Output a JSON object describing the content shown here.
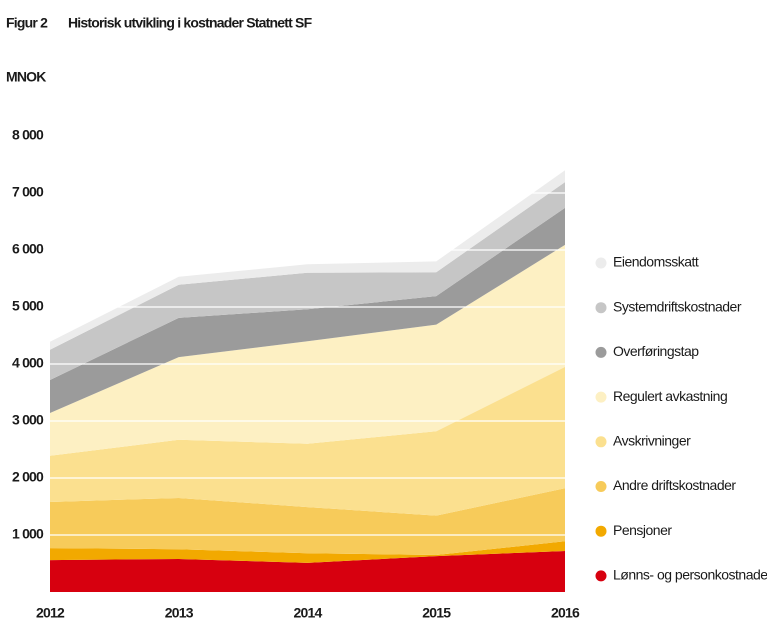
{
  "chart_data": {
    "type": "stacked_area",
    "figure_label": "Figur 2",
    "title": "Historisk utvikling i kostnader Statnett SF",
    "y_label": "MNOK",
    "categories": [
      "2012",
      "2013",
      "2014",
      "2015",
      "2016"
    ],
    "ylim": [
      0,
      8000
    ],
    "yticks": [
      {
        "value": 1000,
        "label": "1 000"
      },
      {
        "value": 2000,
        "label": "2 000"
      },
      {
        "value": 3000,
        "label": "3 000"
      },
      {
        "value": 4000,
        "label": "4 000"
      },
      {
        "value": 5000,
        "label": "5 000"
      },
      {
        "value": 6000,
        "label": "6 000"
      },
      {
        "value": 7000,
        "label": "7 000"
      },
      {
        "value": 8000,
        "label": "8 000"
      }
    ],
    "grid": true,
    "legend": "right",
    "series": [
      {
        "name": "Lønns- og personkostnader",
        "color": "#d7000f",
        "values": [
          560,
          580,
          510,
          630,
          720
        ]
      },
      {
        "name": "Pensjoner",
        "color": "#f2a900",
        "values": [
          210,
          170,
          170,
          20,
          170
        ]
      },
      {
        "name": "Andre driftskostnader",
        "color": "#f7cb5a",
        "values": [
          810,
          900,
          810,
          690,
          930
        ]
      },
      {
        "name": "Avskrivninger",
        "color": "#fbe08f",
        "values": [
          810,
          1020,
          1110,
          1480,
          2130
        ]
      },
      {
        "name": "Regulert avkastning",
        "color": "#fdf0c3",
        "values": [
          750,
          1450,
          1800,
          1870,
          2140
        ]
      },
      {
        "name": "Overføringstap",
        "color": "#9b9b9b",
        "values": [
          580,
          690,
          560,
          500,
          650
        ]
      },
      {
        "name": "Systemdriftskostnader",
        "color": "#c6c6c6",
        "values": [
          530,
          580,
          640,
          420,
          450
        ]
      },
      {
        "name": "Eiendomsskatt",
        "color": "#ececec",
        "values": [
          140,
          140,
          150,
          190,
          210
        ]
      }
    ]
  }
}
